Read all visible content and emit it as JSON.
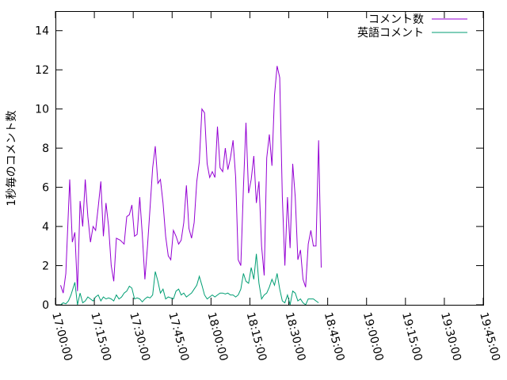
{
  "chart_data": {
    "type": "line",
    "ylabel": "1秒毎のコメント数",
    "xlim": [
      "17:00:00",
      "19:45:00"
    ],
    "ylim": [
      0,
      15
    ],
    "x_ticks": [
      "17:00:00",
      "17:15:00",
      "17:30:00",
      "17:45:00",
      "18:00:00",
      "18:15:00",
      "18:30:00",
      "18:45:00",
      "19:00:00",
      "19:15:00",
      "19:30:00",
      "19:45:00"
    ],
    "y_ticks": [
      "0",
      "2",
      "4",
      "6",
      "8",
      "10",
      "12",
      "14"
    ],
    "grid": false,
    "legend_position": "top-right",
    "series": [
      {
        "name": "コメント数",
        "color": "#9400d3",
        "points": [
          [
            "17:02:00",
            1.0
          ],
          [
            "17:03:00",
            0.6
          ],
          [
            "17:04:00",
            1.6
          ],
          [
            "17:05:30",
            6.4
          ],
          [
            "17:06:30",
            3.2
          ],
          [
            "17:07:30",
            3.7
          ],
          [
            "17:08:30",
            0.7
          ],
          [
            "17:09:30",
            5.3
          ],
          [
            "17:10:30",
            4.0
          ],
          [
            "17:11:30",
            6.4
          ],
          [
            "17:12:30",
            4.5
          ],
          [
            "17:13:30",
            3.2
          ],
          [
            "17:14:30",
            4.0
          ],
          [
            "17:15:30",
            3.8
          ],
          [
            "17:16:30",
            5.0
          ],
          [
            "17:17:30",
            6.3
          ],
          [
            "17:18:30",
            3.5
          ],
          [
            "17:19:30",
            5.2
          ],
          [
            "17:20:30",
            4.0
          ],
          [
            "17:21:30",
            2.0
          ],
          [
            "17:22:30",
            1.2
          ],
          [
            "17:23:30",
            3.4
          ],
          [
            "17:25:00",
            3.3
          ],
          [
            "17:26:30",
            3.1
          ],
          [
            "17:27:30",
            4.5
          ],
          [
            "17:28:30",
            4.6
          ],
          [
            "17:29:30",
            5.1
          ],
          [
            "17:30:30",
            3.5
          ],
          [
            "17:31:30",
            3.6
          ],
          [
            "17:32:30",
            5.5
          ],
          [
            "17:33:30",
            3.6
          ],
          [
            "17:34:30",
            1.3
          ],
          [
            "17:35:30",
            3.0
          ],
          [
            "17:36:30",
            5.0
          ],
          [
            "17:37:30",
            7.0
          ],
          [
            "17:38:30",
            8.1
          ],
          [
            "17:39:30",
            6.2
          ],
          [
            "17:40:30",
            6.4
          ],
          [
            "17:41:30",
            5.2
          ],
          [
            "17:42:30",
            3.5
          ],
          [
            "17:43:30",
            2.5
          ],
          [
            "17:44:30",
            2.3
          ],
          [
            "17:45:30",
            3.8
          ],
          [
            "17:46:30",
            3.5
          ],
          [
            "17:47:30",
            3.1
          ],
          [
            "17:48:30",
            3.3
          ],
          [
            "17:49:30",
            4.2
          ],
          [
            "17:50:30",
            6.1
          ],
          [
            "17:51:30",
            3.9
          ],
          [
            "17:52:30",
            3.4
          ],
          [
            "17:53:30",
            4.2
          ],
          [
            "17:54:30",
            6.3
          ],
          [
            "17:55:30",
            7.3
          ],
          [
            "17:56:30",
            10.0
          ],
          [
            "17:57:30",
            9.8
          ],
          [
            "17:58:30",
            7.2
          ],
          [
            "17:59:30",
            6.5
          ],
          [
            "18:00:30",
            6.8
          ],
          [
            "18:01:30",
            6.5
          ],
          [
            "18:02:30",
            9.1
          ],
          [
            "18:03:30",
            7.0
          ],
          [
            "18:04:30",
            6.8
          ],
          [
            "18:05:30",
            8.0
          ],
          [
            "18:06:30",
            6.9
          ],
          [
            "18:07:30",
            7.5
          ],
          [
            "18:08:30",
            8.4
          ],
          [
            "18:09:30",
            6.5
          ],
          [
            "18:10:30",
            2.3
          ],
          [
            "18:11:30",
            2.0
          ],
          [
            "18:12:30",
            6.0
          ],
          [
            "18:13:30",
            9.3
          ],
          [
            "18:14:30",
            5.7
          ],
          [
            "18:15:30",
            6.4
          ],
          [
            "18:16:30",
            7.6
          ],
          [
            "18:17:30",
            5.2
          ],
          [
            "18:18:30",
            6.3
          ],
          [
            "18:19:30",
            3.0
          ],
          [
            "18:20:30",
            1.5
          ],
          [
            "18:21:30",
            7.5
          ],
          [
            "18:22:30",
            8.7
          ],
          [
            "18:23:30",
            7.1
          ],
          [
            "18:24:30",
            10.7
          ],
          [
            "18:25:30",
            12.2
          ],
          [
            "18:26:30",
            11.6
          ],
          [
            "18:27:30",
            5.5
          ],
          [
            "18:28:30",
            2.0
          ],
          [
            "18:29:30",
            5.5
          ],
          [
            "18:30:30",
            2.9
          ],
          [
            "18:31:30",
            7.2
          ],
          [
            "18:32:30",
            5.5
          ],
          [
            "18:33:30",
            2.3
          ],
          [
            "18:34:30",
            2.8
          ],
          [
            "18:35:30",
            1.3
          ],
          [
            "18:36:30",
            0.9
          ],
          [
            "18:37:30",
            3.1
          ],
          [
            "18:38:30",
            3.8
          ],
          [
            "18:39:30",
            3.0
          ],
          [
            "18:40:30",
            3.0
          ],
          [
            "18:41:30",
            8.4
          ],
          [
            "18:42:30",
            1.9
          ]
        ]
      },
      {
        "name": "英語コメント",
        "color": "#009e73",
        "points": [
          [
            "17:02:00",
            0.0
          ],
          [
            "17:03:00",
            0.1
          ],
          [
            "17:04:00",
            0.05
          ],
          [
            "17:05:00",
            0.2
          ],
          [
            "17:06:00",
            0.5
          ],
          [
            "17:07:30",
            1.15
          ],
          [
            "17:08:30",
            0.0
          ],
          [
            "17:09:30",
            0.6
          ],
          [
            "17:10:30",
            0.1
          ],
          [
            "17:11:30",
            0.2
          ],
          [
            "17:12:30",
            0.4
          ],
          [
            "17:13:30",
            0.3
          ],
          [
            "17:14:30",
            0.2
          ],
          [
            "17:15:30",
            0.4
          ],
          [
            "17:16:30",
            0.5
          ],
          [
            "17:17:30",
            0.2
          ],
          [
            "17:18:30",
            0.4
          ],
          [
            "17:19:30",
            0.3
          ],
          [
            "17:20:30",
            0.35
          ],
          [
            "17:21:30",
            0.3
          ],
          [
            "17:22:30",
            0.2
          ],
          [
            "17:23:30",
            0.5
          ],
          [
            "17:24:30",
            0.3
          ],
          [
            "17:25:30",
            0.4
          ],
          [
            "17:26:30",
            0.6
          ],
          [
            "17:27:30",
            0.7
          ],
          [
            "17:28:30",
            0.95
          ],
          [
            "17:29:30",
            0.85
          ],
          [
            "17:30:30",
            0.3
          ],
          [
            "17:31:30",
            0.35
          ],
          [
            "17:32:30",
            0.3
          ],
          [
            "17:33:30",
            0.15
          ],
          [
            "17:34:30",
            0.3
          ],
          [
            "17:35:30",
            0.4
          ],
          [
            "17:36:30",
            0.35
          ],
          [
            "17:37:30",
            0.5
          ],
          [
            "17:38:30",
            1.7
          ],
          [
            "17:39:30",
            1.2
          ],
          [
            "17:40:30",
            0.6
          ],
          [
            "17:41:30",
            0.8
          ],
          [
            "17:42:30",
            0.3
          ],
          [
            "17:43:30",
            0.4
          ],
          [
            "17:44:30",
            0.35
          ],
          [
            "17:45:30",
            0.3
          ],
          [
            "17:46:30",
            0.7
          ],
          [
            "17:47:30",
            0.8
          ],
          [
            "17:48:30",
            0.5
          ],
          [
            "17:49:30",
            0.6
          ],
          [
            "17:50:30",
            0.4
          ],
          [
            "17:51:30",
            0.5
          ],
          [
            "17:52:30",
            0.6
          ],
          [
            "17:53:30",
            0.8
          ],
          [
            "17:54:30",
            1.0
          ],
          [
            "17:55:30",
            1.45
          ],
          [
            "17:56:30",
            1.0
          ],
          [
            "17:57:30",
            0.5
          ],
          [
            "17:58:30",
            0.3
          ],
          [
            "17:59:30",
            0.4
          ],
          [
            "18:00:30",
            0.5
          ],
          [
            "18:01:30",
            0.4
          ],
          [
            "18:02:30",
            0.5
          ],
          [
            "18:03:30",
            0.6
          ],
          [
            "18:04:30",
            0.6
          ],
          [
            "18:05:30",
            0.55
          ],
          [
            "18:06:30",
            0.6
          ],
          [
            "18:07:30",
            0.5
          ],
          [
            "18:08:30",
            0.5
          ],
          [
            "18:09:30",
            0.4
          ],
          [
            "18:10:30",
            0.5
          ],
          [
            "18:11:30",
            0.8
          ],
          [
            "18:12:30",
            1.6
          ],
          [
            "18:13:30",
            1.2
          ],
          [
            "18:14:30",
            1.1
          ],
          [
            "18:15:30",
            1.9
          ],
          [
            "18:16:30",
            1.3
          ],
          [
            "18:17:30",
            2.6
          ],
          [
            "18:18:30",
            1.1
          ],
          [
            "18:19:30",
            0.3
          ],
          [
            "18:20:30",
            0.5
          ],
          [
            "18:21:30",
            0.6
          ],
          [
            "18:22:30",
            0.9
          ],
          [
            "18:23:30",
            1.3
          ],
          [
            "18:24:30",
            1.0
          ],
          [
            "18:25:30",
            1.6
          ],
          [
            "18:26:30",
            0.8
          ],
          [
            "18:27:30",
            0.2
          ],
          [
            "18:28:30",
            0.1
          ],
          [
            "18:29:30",
            0.5
          ],
          [
            "18:30:30",
            0.0
          ],
          [
            "18:31:30",
            0.7
          ],
          [
            "18:32:30",
            0.6
          ],
          [
            "18:33:30",
            0.2
          ],
          [
            "18:34:30",
            0.3
          ],
          [
            "18:35:30",
            0.1
          ],
          [
            "18:36:30",
            0.0
          ],
          [
            "18:37:30",
            0.3
          ],
          [
            "18:38:30",
            0.3
          ],
          [
            "18:39:30",
            0.3
          ],
          [
            "18:40:30",
            0.2
          ],
          [
            "18:41:30",
            0.1
          ]
        ]
      }
    ]
  }
}
